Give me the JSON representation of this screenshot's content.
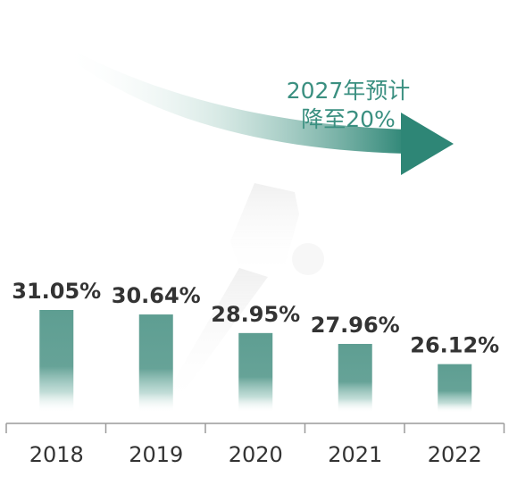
{
  "annotation": {
    "line1": "2027年预计",
    "line2": "降至20%"
  },
  "colors": {
    "bar": "#5e9e92",
    "text": "#333333",
    "annotation": "#3a8f80",
    "arrow": "#2e8676",
    "axis": "#9a9a9a"
  },
  "chart_data": {
    "type": "bar",
    "categories": [
      "2018",
      "2019",
      "2020",
      "2021",
      "2022"
    ],
    "values": [
      31.05,
      30.64,
      28.95,
      27.96,
      26.12
    ],
    "value_labels": [
      "31.05%",
      "30.64%",
      "28.95%",
      "27.96%",
      "26.12%"
    ],
    "title": "",
    "xlabel": "",
    "ylabel": "",
    "unit": "%",
    "grid": false,
    "legend": "none"
  }
}
